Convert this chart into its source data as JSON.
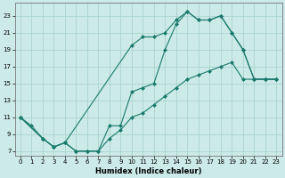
{
  "xlabel": "Humidex (Indice chaleur)",
  "bg_color": "#cceae7",
  "grid_color": "#aad4d0",
  "line_color": "#1a7a6e",
  "xlim": [
    -0.5,
    23.5
  ],
  "ylim": [
    6.5,
    24.5
  ],
  "xticks": [
    0,
    1,
    2,
    3,
    4,
    5,
    6,
    7,
    8,
    9,
    10,
    11,
    12,
    13,
    14,
    15,
    16,
    17,
    18,
    19,
    20,
    21,
    22,
    23
  ],
  "yticks": [
    7,
    9,
    11,
    13,
    15,
    17,
    19,
    21,
    23
  ],
  "line1_x": [
    0,
    1,
    2,
    3,
    4,
    5,
    6,
    7,
    8,
    9,
    10,
    11,
    12,
    13,
    14,
    15,
    16,
    17,
    18,
    19,
    20,
    21,
    22,
    23
  ],
  "line1_y": [
    11,
    10,
    8.5,
    7.5,
    8.0,
    7.0,
    7.0,
    7.0,
    10.0,
    10.0,
    14.0,
    14.5,
    15.0,
    19.0,
    22.0,
    23.5,
    22.5,
    22.5,
    23.0,
    21.0,
    19.0,
    15.5,
    15.5,
    15.5
  ],
  "line2_x": [
    0,
    2,
    3,
    4,
    10,
    11,
    12,
    13,
    14,
    15,
    16,
    17,
    18,
    19,
    20,
    21,
    22,
    23
  ],
  "line2_y": [
    11,
    8.5,
    7.5,
    8.0,
    19.5,
    20.5,
    20.5,
    21.0,
    22.5,
    23.5,
    22.5,
    22.5,
    23.0,
    21.0,
    19.0,
    15.5,
    15.5,
    15.5
  ],
  "line3_x": [
    0,
    2,
    3,
    4,
    5,
    6,
    7,
    8,
    9,
    10,
    11,
    12,
    13,
    14,
    15,
    16,
    17,
    18,
    19,
    20,
    21,
    22,
    23
  ],
  "line3_y": [
    11,
    8.5,
    7.5,
    8.0,
    7.0,
    7.0,
    7.0,
    8.5,
    9.5,
    11.0,
    11.5,
    12.5,
    13.5,
    14.5,
    15.5,
    16.0,
    16.5,
    17.0,
    17.5,
    15.5,
    15.5,
    15.5,
    15.5
  ]
}
